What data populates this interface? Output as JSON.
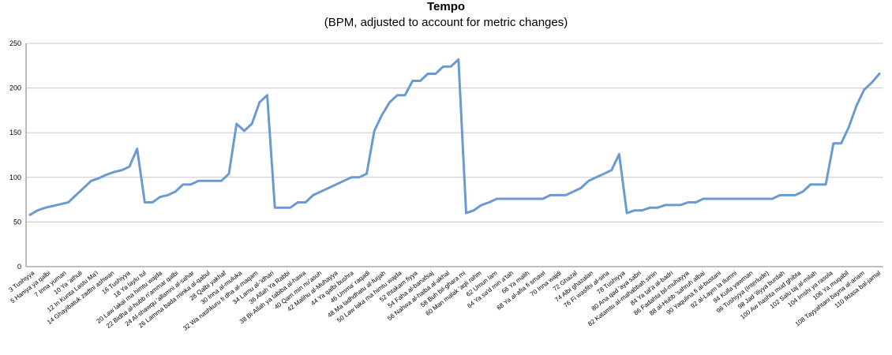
{
  "chart_data": {
    "type": "line",
    "title": "Tempo",
    "subtitle": "(BPM, adjusted to account for metric changes)",
    "xlabel": "",
    "ylabel": "",
    "ylim": [
      0,
      250
    ],
    "yticks": [
      0,
      50,
      100,
      150,
      200,
      250
    ],
    "grid": true,
    "legend": "none",
    "line_color": "#6a9bd0",
    "x_tick_labels": [
      "3 Tushiyya",
      "5 Haniya ya qalbi",
      "7 Inna yuman",
      "10 Ya 'athuli",
      "12 In Kunta Lastu Ma'i",
      "14 Ghayibatuk zadtni ashwan",
      "16 Tushiyya",
      "18 Ya laylu tul",
      "20 Law lakai ma himtu wajda",
      "22 Bidha al-hubb n'ammar qalbi",
      "24 Al-shawqu 'allamni al-sahar",
      "26 Lamma bada minka al-qabul",
      "28 Qalbi yakhaf",
      "30 Inna al-muluka",
      "32 Wa nashkuru fi dha al-maqam",
      "34 Lamu al-'idhari",
      "36 Allah Ya Rabbi",
      "38 Bi-Allah ya tabiba al-hawa",
      "40 Qam min nu'asuh",
      "42 Malihu al-Muhayya",
      "44 Ya qalbi bushra",
      "46 Umma' raqadi",
      "48 Ma ladhdhatu al-furjah",
      "50 Law laka ma himtu wajda",
      "52 Ihtakam fiyya",
      "54 Faha al-banafsaj",
      "56 Nahwa al-haiba al-akhal",
      "58 Buh bil-ghara mi",
      "60 Man malak 'aqli rahm",
      "62 Umun lam",
      "64 Ya sa'd min a'tah",
      "66 Ya malih",
      "68 Ya al-afia fi smawi",
      "70 Inna wajdi",
      "72 Ghazal",
      "74 Albi ghazalan",
      "76 Fi wasfihi al-sina",
      "78 Tushiyya",
      "80 Ana qad 'aya sabri",
      "82 Katamtu al-mahabbah sinin",
      "84 Ya tal'a al-badri",
      "86 Fadahta bil-muhayya",
      "88 al-Hubb 'sahruh albai",
      "90 Yaqulina fi al-bustani",
      "92 al-Laym la tlumni",
      "94 Kulla yawman",
      "96 Tushiyya (Interlude)",
      "98 Jad 'iliyya burdah",
      "100 Aw hashta mud ghibta",
      "102 Salu taj al-milah",
      "104 Imshi ya rasula",
      "106 Ya muqabil",
      "108 Tayyahtani bayna al-anam",
      "110 Iktasa bal-jamal"
    ],
    "x_index_range": [
      1,
      109
    ],
    "series": [
      {
        "points": [
          [
            1,
            58
          ],
          [
            2,
            63
          ],
          [
            3,
            66
          ],
          [
            4,
            68
          ],
          [
            5,
            70
          ],
          [
            6,
            72
          ],
          [
            7,
            80
          ],
          [
            8,
            88
          ],
          [
            9,
            96
          ],
          [
            10,
            99
          ],
          [
            11,
            103
          ],
          [
            12,
            106
          ],
          [
            13,
            108
          ],
          [
            14,
            112
          ],
          [
            15,
            132
          ],
          [
            16,
            72
          ],
          [
            17,
            72
          ],
          [
            18,
            78
          ],
          [
            19,
            80
          ],
          [
            20,
            84
          ],
          [
            21,
            92
          ],
          [
            22,
            92
          ],
          [
            23,
            96
          ],
          [
            24,
            96
          ],
          [
            25,
            96
          ],
          [
            26,
            96
          ],
          [
            27,
            104
          ],
          [
            28,
            160
          ],
          [
            29,
            152
          ],
          [
            30,
            160
          ],
          [
            31,
            184
          ],
          [
            32,
            192
          ],
          [
            33,
            66
          ],
          [
            34,
            66
          ],
          [
            35,
            66
          ],
          [
            36,
            72
          ],
          [
            37,
            72
          ],
          [
            38,
            80
          ],
          [
            39,
            84
          ],
          [
            40,
            88
          ],
          [
            41,
            92
          ],
          [
            42,
            96
          ],
          [
            43,
            100
          ],
          [
            44,
            100
          ],
          [
            45,
            104
          ],
          [
            46,
            152
          ],
          [
            47,
            170
          ],
          [
            48,
            184
          ],
          [
            49,
            192
          ],
          [
            50,
            192
          ],
          [
            51,
            208
          ],
          [
            52,
            208
          ],
          [
            53,
            216
          ],
          [
            54,
            216
          ],
          [
            55,
            224
          ],
          [
            56,
            224
          ],
          [
            57,
            232
          ],
          [
            58,
            60
          ],
          [
            59,
            63
          ],
          [
            60,
            69
          ],
          [
            61,
            72
          ],
          [
            62,
            76
          ],
          [
            63,
            76
          ],
          [
            64,
            76
          ],
          [
            65,
            76
          ],
          [
            66,
            76
          ],
          [
            67,
            76
          ],
          [
            68,
            76
          ],
          [
            69,
            80
          ],
          [
            70,
            80
          ],
          [
            71,
            80
          ],
          [
            72,
            84
          ],
          [
            73,
            88
          ],
          [
            74,
            96
          ],
          [
            75,
            100
          ],
          [
            76,
            104
          ],
          [
            77,
            108
          ],
          [
            78,
            126
          ],
          [
            79,
            60
          ],
          [
            80,
            63
          ],
          [
            81,
            63
          ],
          [
            82,
            66
          ],
          [
            83,
            66
          ],
          [
            84,
            69
          ],
          [
            85,
            69
          ],
          [
            86,
            69
          ],
          [
            87,
            72
          ],
          [
            88,
            72
          ],
          [
            89,
            76
          ],
          [
            90,
            76
          ],
          [
            91,
            76
          ],
          [
            92,
            76
          ],
          [
            93,
            76
          ],
          [
            94,
            76
          ],
          [
            95,
            76
          ],
          [
            96,
            76
          ],
          [
            97,
            76
          ],
          [
            98,
            76
          ],
          [
            99,
            80
          ],
          [
            100,
            80
          ],
          [
            101,
            80
          ],
          [
            102,
            84
          ],
          [
            103,
            92
          ],
          [
            104,
            92
          ],
          [
            105,
            92
          ],
          [
            106,
            138
          ],
          [
            107,
            138
          ],
          [
            108,
            156
          ],
          [
            109,
            180
          ],
          [
            110,
            198
          ],
          [
            111,
            206
          ],
          [
            112,
            216
          ]
        ]
      }
    ]
  }
}
